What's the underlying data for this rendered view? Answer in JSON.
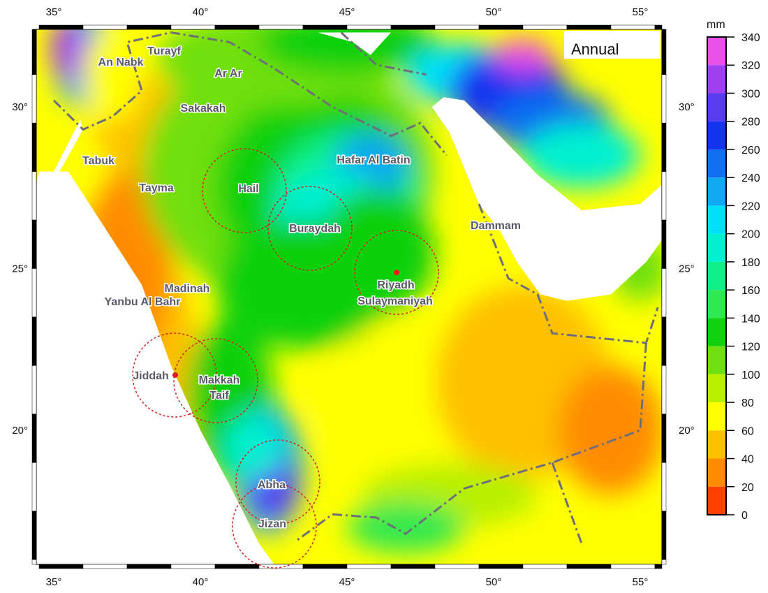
{
  "map": {
    "panel_label": "Annual",
    "lon_ticks": [
      "35°",
      "40°",
      "45°",
      "50°",
      "55°"
    ],
    "lat_ticks": [
      "30°",
      "25°",
      "20°"
    ],
    "cities": [
      "Turayf",
      "An Nabk",
      "Ar Ar",
      "Sakakah",
      "Tabuk",
      "Tayma",
      "Hail",
      "Hafar Al Batin",
      "Buraydah",
      "Dammam",
      "Riyadh",
      "Sulaymaniyah",
      "Madinah",
      "Yanbu Al Bahr",
      "Jiddah",
      "Makkah",
      "Taif",
      "Abha",
      "Jizan"
    ]
  },
  "colorbar": {
    "unit": "mm",
    "ticks": [
      "340",
      "320",
      "300",
      "280",
      "260",
      "240",
      "220",
      "200",
      "180",
      "160",
      "140",
      "120",
      "100",
      "80",
      "60",
      "40",
      "20",
      "0"
    ],
    "colors": [
      "#e850e8",
      "#a040f0",
      "#5a3cf0",
      "#1434f0",
      "#1070f0",
      "#10a8f0",
      "#00e0f8",
      "#00f0d0",
      "#10f088",
      "#30e850",
      "#10d010",
      "#70e010",
      "#b8f000",
      "#ffff00",
      "#ffc000",
      "#ff8c00",
      "#ff4000"
    ]
  }
}
